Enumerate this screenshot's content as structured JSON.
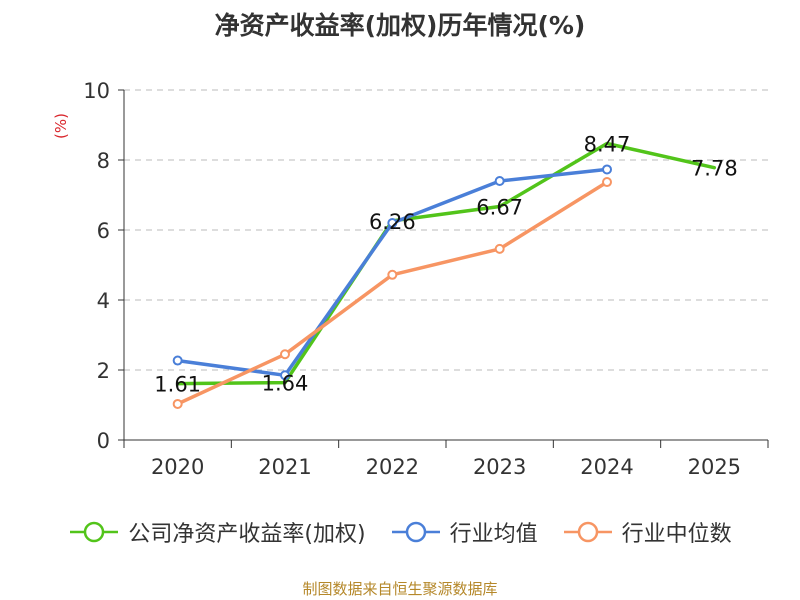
{
  "title": "净资产收益率(加权)历年情况(%)",
  "source": "制图数据来自恒生聚源数据库",
  "chart_data": {
    "type": "line",
    "title": "净资产收益率(加权)历年情况(%)",
    "ylabel": "(%)",
    "xlabel": "",
    "categories": [
      "2020",
      "2021",
      "2022",
      "2023",
      "2024",
      "2025"
    ],
    "ylim": [
      0,
      10
    ],
    "yticks": [
      0,
      2,
      4,
      6,
      8,
      10
    ],
    "grid": true,
    "legend_position": "bottom",
    "series": [
      {
        "name": "公司净资产收益率(加权)",
        "color": "#52c41a",
        "values": [
          1.61,
          1.64,
          6.26,
          6.67,
          8.47,
          7.78
        ],
        "labels": [
          "1.61",
          "1.64",
          "6.26",
          "6.67",
          "8.47",
          "7.78"
        ],
        "show_labels": true,
        "markers": false
      },
      {
        "name": "行业均值",
        "color": "#4a7fd8",
        "values": [
          2.27,
          1.85,
          6.2,
          7.4,
          7.73,
          null
        ],
        "show_labels": false,
        "markers": true
      },
      {
        "name": "行业中位数",
        "color": "#f79563",
        "values": [
          1.03,
          2.45,
          4.72,
          5.46,
          7.37,
          null
        ],
        "show_labels": false,
        "markers": true
      }
    ]
  }
}
